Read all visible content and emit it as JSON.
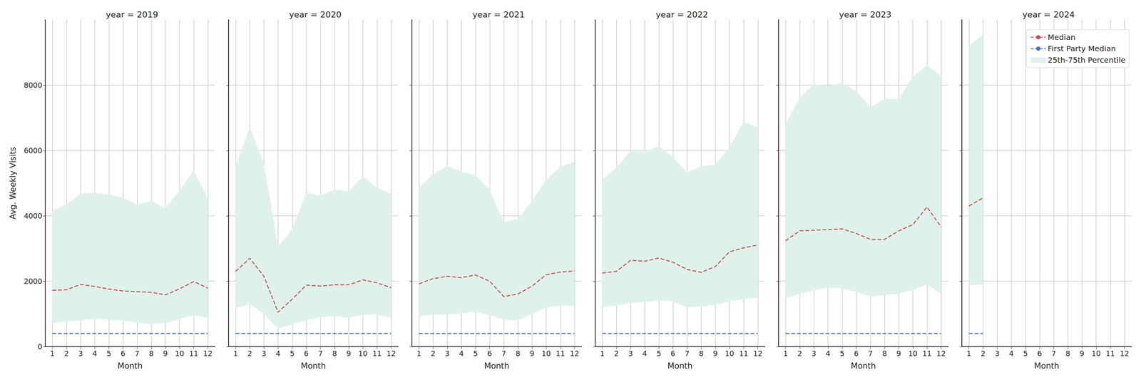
{
  "chart_data": [
    {
      "type": "line",
      "title": "year = 2019",
      "xlabel": "Month",
      "ylabel": "Avg. Weekly Visits",
      "x": [
        1,
        2,
        3,
        4,
        5,
        6,
        7,
        8,
        9,
        10,
        11,
        12
      ],
      "xlim": [
        0.5,
        12.5
      ],
      "xticks": [
        1,
        2,
        3,
        4,
        5,
        6,
        7,
        8,
        9,
        10,
        11,
        12
      ],
      "ylim": [
        0,
        10000
      ],
      "yticks": [
        0,
        2000,
        4000,
        6000,
        8000
      ],
      "grid": true,
      "series": [
        {
          "name": "Median",
          "color": "#c44e52",
          "line_style": "dashed",
          "values": [
            1720,
            1740,
            1900,
            1840,
            1760,
            1700,
            1680,
            1660,
            1580,
            1770,
            1990,
            1790
          ]
        },
        {
          "name": "First Party Median",
          "color": "#4c72b0",
          "line_style": "dashed",
          "values": [
            400,
            400,
            400,
            400,
            400,
            400,
            400,
            400,
            400,
            400,
            400,
            400
          ]
        },
        {
          "name": "25th-75th Percentile",
          "type": "band",
          "color": "#dff1eb",
          "lower": [
            720,
            770,
            800,
            850,
            820,
            800,
            730,
            690,
            720,
            850,
            960,
            880
          ],
          "upper": [
            4150,
            4350,
            4680,
            4700,
            4650,
            4550,
            4350,
            4450,
            4220,
            4780,
            5380,
            4550
          ]
        }
      ]
    },
    {
      "type": "line",
      "title": "year = 2020",
      "xlabel": "Month",
      "tick_labels": "x",
      "x": [
        1,
        2,
        3,
        4,
        5,
        6,
        7,
        8,
        9,
        10,
        11,
        12
      ],
      "xlim": [
        0.5,
        12.5
      ],
      "xticks": [
        1,
        2,
        3,
        4,
        5,
        6,
        7,
        8,
        9,
        10,
        11,
        12
      ],
      "ylim": [
        0,
        10000
      ],
      "yticks": [
        0,
        2000,
        4000,
        6000,
        8000
      ],
      "grid": true,
      "series": [
        {
          "name": "Median",
          "color": "#c44e52",
          "line_style": "dashed",
          "values": [
            2300,
            2700,
            2150,
            1050,
            1450,
            1880,
            1850,
            1890,
            1890,
            2040,
            1950,
            1800
          ]
        },
        {
          "name": "First Party Median",
          "color": "#4c72b0",
          "line_style": "dashed",
          "values": [
            400,
            400,
            400,
            400,
            400,
            400,
            400,
            400,
            400,
            400,
            400,
            400
          ]
        },
        {
          "name": "25th-75th Percentile",
          "type": "band",
          "color": "#dff1eb",
          "lower": [
            1180,
            1300,
            1000,
            550,
            680,
            800,
            900,
            930,
            880,
            980,
            980,
            880
          ],
          "upper": [
            5550,
            6700,
            5600,
            3050,
            3600,
            4700,
            4620,
            4800,
            4750,
            5200,
            4850,
            4680
          ]
        }
      ]
    },
    {
      "type": "line",
      "title": "year = 2021",
      "xlabel": "Month",
      "tick_labels": "x",
      "x": [
        1,
        2,
        3,
        4,
        5,
        6,
        7,
        8,
        9,
        10,
        11,
        12
      ],
      "xlim": [
        0.5,
        12.5
      ],
      "xticks": [
        1,
        2,
        3,
        4,
        5,
        6,
        7,
        8,
        9,
        10,
        11,
        12
      ],
      "ylim": [
        0,
        10000
      ],
      "yticks": [
        0,
        2000,
        4000,
        6000,
        8000
      ],
      "grid": true,
      "series": [
        {
          "name": "Median",
          "color": "#c44e52",
          "line_style": "dashed",
          "values": [
            1920,
            2080,
            2150,
            2110,
            2190,
            2000,
            1530,
            1610,
            1850,
            2200,
            2280,
            2310
          ]
        },
        {
          "name": "First Party Median",
          "color": "#4c72b0",
          "line_style": "dashed",
          "values": [
            400,
            400,
            400,
            400,
            400,
            400,
            400,
            400,
            400,
            400,
            400,
            400
          ]
        },
        {
          "name": "25th-75th Percentile",
          "type": "band",
          "color": "#dff1eb",
          "lower": [
            930,
            980,
            980,
            1020,
            1060,
            970,
            820,
            800,
            1000,
            1200,
            1260,
            1250
          ],
          "upper": [
            4850,
            5280,
            5520,
            5350,
            5250,
            4800,
            3800,
            3900,
            4450,
            5100,
            5500,
            5650
          ]
        }
      ]
    },
    {
      "type": "line",
      "title": "year = 2022",
      "xlabel": "Month",
      "tick_labels": "x",
      "x": [
        1,
        2,
        3,
        4,
        5,
        6,
        7,
        8,
        9,
        10,
        11,
        12
      ],
      "xlim": [
        0.5,
        12.5
      ],
      "xticks": [
        1,
        2,
        3,
        4,
        5,
        6,
        7,
        8,
        9,
        10,
        11,
        12
      ],
      "ylim": [
        0,
        10000
      ],
      "yticks": [
        0,
        2000,
        4000,
        6000,
        8000
      ],
      "grid": true,
      "series": [
        {
          "name": "Median",
          "color": "#c44e52",
          "line_style": "dashed",
          "values": [
            2250,
            2300,
            2640,
            2610,
            2710,
            2580,
            2360,
            2270,
            2450,
            2900,
            3020,
            3110
          ]
        },
        {
          "name": "First Party Median",
          "color": "#4c72b0",
          "line_style": "dashed",
          "values": [
            400,
            400,
            400,
            400,
            400,
            400,
            400,
            400,
            400,
            400,
            400,
            400
          ]
        },
        {
          "name": "25th-75th Percentile",
          "type": "band",
          "color": "#dff1eb",
          "lower": [
            1200,
            1260,
            1340,
            1350,
            1420,
            1380,
            1200,
            1230,
            1280,
            1380,
            1450,
            1500
          ],
          "upper": [
            5100,
            5480,
            5980,
            5970,
            6130,
            5800,
            5320,
            5520,
            5560,
            6100,
            6880,
            6700
          ]
        }
      ]
    },
    {
      "type": "line",
      "title": "year = 2023",
      "xlabel": "Month",
      "tick_labels": "x",
      "x": [
        1,
        2,
        3,
        4,
        5,
        6,
        7,
        8,
        9,
        10,
        11,
        12
      ],
      "xlim": [
        0.5,
        12.5
      ],
      "xticks": [
        1,
        2,
        3,
        4,
        5,
        6,
        7,
        8,
        9,
        10,
        11,
        12
      ],
      "ylim": [
        0,
        10000
      ],
      "yticks": [
        0,
        2000,
        4000,
        6000,
        8000
      ],
      "grid": true,
      "series": [
        {
          "name": "Median",
          "color": "#c44e52",
          "line_style": "dashed",
          "values": [
            3240,
            3540,
            3560,
            3580,
            3600,
            3460,
            3280,
            3280,
            3540,
            3730,
            4270,
            3660
          ]
        },
        {
          "name": "First Party Median",
          "color": "#4c72b0",
          "line_style": "dashed",
          "values": [
            400,
            400,
            400,
            400,
            400,
            400,
            400,
            400,
            400,
            400,
            400,
            400
          ]
        },
        {
          "name": "25th-75th Percentile",
          "type": "band",
          "color": "#dff1eb",
          "lower": [
            1480,
            1620,
            1720,
            1800,
            1780,
            1680,
            1530,
            1570,
            1620,
            1730,
            1900,
            1620
          ],
          "upper": [
            6800,
            7620,
            8030,
            7980,
            8060,
            7820,
            7320,
            7590,
            7570,
            8260,
            8610,
            8280
          ]
        }
      ]
    },
    {
      "type": "line",
      "title": "year = 2024",
      "xlabel": "Month",
      "tick_labels": "x",
      "legend": "upper right",
      "x": [
        1,
        2,
        3,
        4,
        5,
        6,
        7,
        8,
        9,
        10,
        11,
        12
      ],
      "xlim": [
        0.5,
        12.5
      ],
      "xticks": [
        1,
        2,
        3,
        4,
        5,
        6,
        7,
        8,
        9,
        10,
        11,
        12
      ],
      "ylim": [
        0,
        10000
      ],
      "yticks": [
        0,
        2000,
        4000,
        6000,
        8000
      ],
      "grid": true,
      "series": [
        {
          "name": "Median",
          "color": "#c44e52",
          "line_style": "dashed",
          "values": [
            4300,
            4550,
            null,
            null,
            null,
            null,
            null,
            null,
            null,
            null,
            null,
            null
          ]
        },
        {
          "name": "First Party Median",
          "color": "#4c72b0",
          "line_style": "dashed",
          "values": [
            400,
            400,
            null,
            null,
            null,
            null,
            null,
            null,
            null,
            null,
            null,
            null
          ]
        },
        {
          "name": "25th-75th Percentile",
          "type": "band",
          "color": "#dff1eb",
          "lower": [
            1870,
            1900,
            null,
            null,
            null,
            null,
            null,
            null,
            null,
            null,
            null,
            null
          ],
          "upper": [
            9200,
            9550,
            null,
            null,
            null,
            null,
            null,
            null,
            null,
            null,
            null,
            null
          ]
        }
      ]
    }
  ]
}
